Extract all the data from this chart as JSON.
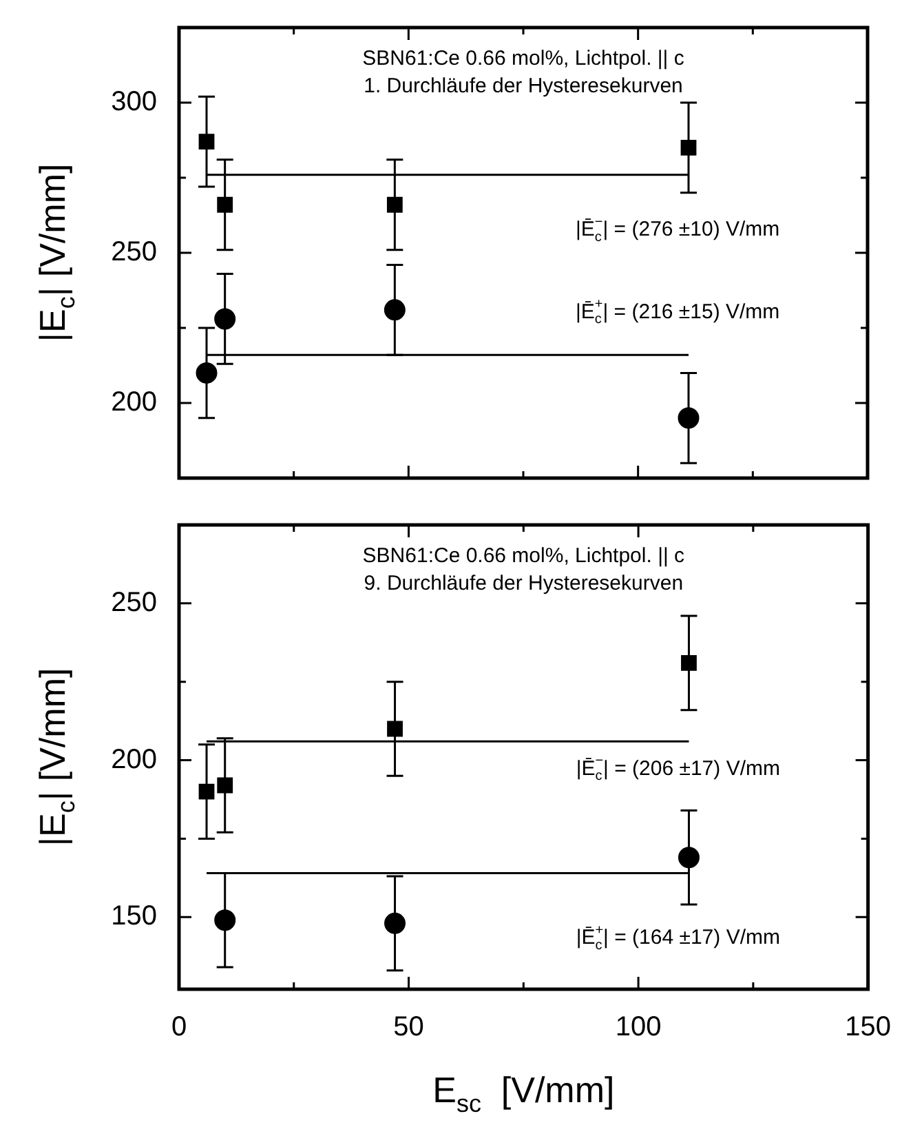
{
  "chart_data": [
    {
      "type": "scatter",
      "title": "SBN61:Ce 0.66 mol%, Lichtpol. || c",
      "subtitle": "1. Durchläufe der Hysteresekurven",
      "ylabel": "|E$_{c}$| [V/mm]",
      "xlim": [
        0,
        150
      ],
      "xticks": [
        0,
        {
          "value": 25,
          "label": null
        },
        50,
        {
          "value": 75,
          "label": null
        },
        100,
        {
          "value": 125,
          "label": null
        },
        150
      ],
      "ylim": [
        175,
        325
      ],
      "yticks": [
        200,
        {
          "value": 225,
          "label": null
        },
        250,
        {
          "value": 275,
          "label": null
        },
        300
      ],
      "tick_labels": "y",
      "series": [
        {
          "type": "scatter",
          "marker": "square",
          "color": "#000000",
          "x": [
            6,
            10,
            47,
            111
          ],
          "values": [
            287,
            266,
            266,
            285
          ],
          "errors": [
            15,
            15,
            15,
            15
          ]
        },
        {
          "type": "scatter",
          "marker": "circle",
          "color": "#000000",
          "x": [
            6,
            10,
            47,
            111
          ],
          "values": [
            210,
            228,
            231,
            195
          ],
          "errors": [
            15,
            15,
            15,
            15
          ]
        },
        {
          "type": "line",
          "marker": "none",
          "color": "#000000",
          "x": [
            6,
            111
          ],
          "values": [
            276,
            276
          ]
        },
        {
          "type": "line",
          "marker": "none",
          "color": "#000000",
          "x": [
            6,
            111
          ],
          "values": [
            216,
            216
          ]
        }
      ],
      "annotations": [
        "|Ē$_{c}$$^{−}$| = (276 ±10) V/mm",
        "|Ē$_{c}$$^{+}$| = (216 ±15) V/mm"
      ]
    },
    {
      "type": "scatter",
      "title": "SBN61:Ce 0.66 mol%, Lichtpol. || c",
      "subtitle": "9. Durchläufe der Hysteresekurven",
      "xlabel": "E$_{sc}$  [V/mm]",
      "ylabel": "|E$_{c}$| [V/mm]",
      "xlim": [
        0,
        150
      ],
      "xticks": [
        0,
        {
          "value": 25,
          "label": null
        },
        50,
        {
          "value": 75,
          "label": null
        },
        100,
        {
          "value": 125,
          "label": null
        },
        150
      ],
      "ylim": [
        127,
        275
      ],
      "yticks": [
        150,
        {
          "value": 175,
          "label": null
        },
        200,
        {
          "value": 225,
          "label": null
        },
        250
      ],
      "series": [
        {
          "type": "scatter",
          "marker": "square",
          "color": "#000000",
          "x": [
            6,
            10,
            47,
            111
          ],
          "values": [
            190,
            192,
            210,
            231
          ],
          "errors": [
            15,
            15,
            15,
            15
          ]
        },
        {
          "type": "scatter",
          "marker": "circle",
          "color": "#000000",
          "x": [
            10,
            47,
            111
          ],
          "values": [
            149,
            148,
            169
          ],
          "errors": [
            15,
            15,
            15
          ]
        },
        {
          "type": "line",
          "marker": "none",
          "color": "#000000",
          "x": [
            6,
            111
          ],
          "values": [
            206,
            206
          ]
        },
        {
          "type": "line",
          "marker": "none",
          "color": "#000000",
          "x": [
            6,
            111
          ],
          "values": [
            164,
            164
          ]
        }
      ],
      "annotations": [
        "|Ē$_{c}$$^{−}$| = (206 ±17) V/mm",
        "|Ē$_{c}$$^{+}$| = (164 ±17) V/mm"
      ]
    }
  ]
}
